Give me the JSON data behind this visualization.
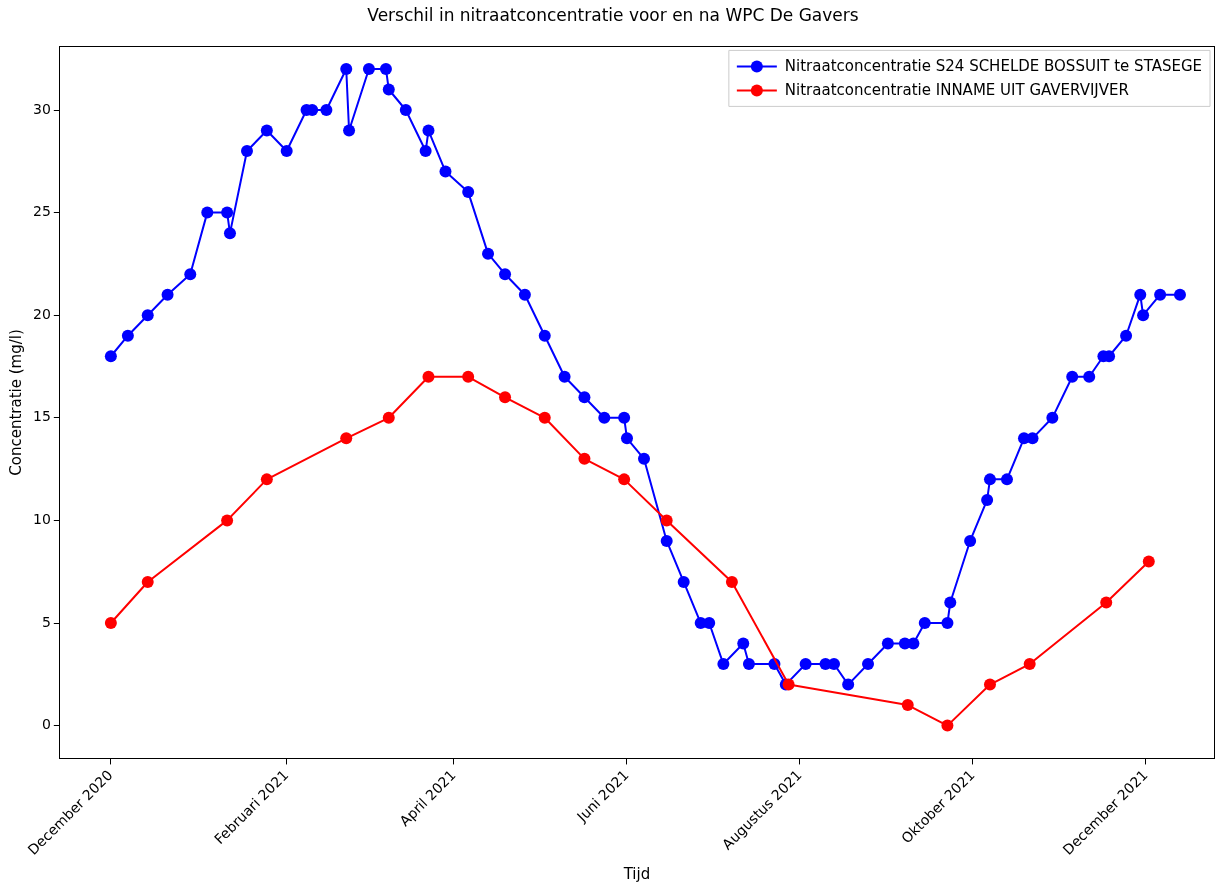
{
  "chart_data": {
    "type": "line",
    "title": "Verschil in nitraatconcentratie voor en na WPC De Gavers",
    "xlabel": "Tijd",
    "ylabel": "Concentratie (mg/l)",
    "xlim": [
      "2020-11-13",
      "2021-12-25"
    ],
    "ylim": [
      -1.6,
      33.1
    ],
    "xticks": [
      {
        "value": "2020-12-01",
        "label": "December 2020"
      },
      {
        "value": "2021-02-01",
        "label": "Februari 2021"
      },
      {
        "value": "2021-04-01",
        "label": "April 2021"
      },
      {
        "value": "2021-06-01",
        "label": "Juni 2021"
      },
      {
        "value": "2021-08-01",
        "label": "Augustus 2021"
      },
      {
        "value": "2021-10-01",
        "label": "Oktober 2021"
      },
      {
        "value": "2021-12-01",
        "label": "December 2021"
      }
    ],
    "yticks": [
      0,
      5,
      10,
      15,
      20,
      25,
      30
    ],
    "legend": "top right",
    "marker": "circle",
    "grid": false,
    "series": [
      {
        "name": "Nitraatconcentratie S24 SCHELDE BOSSUIT te STASEGE",
        "color": "#0000ff",
        "x": [
          "2020-12-01",
          "2020-12-07",
          "2020-12-14",
          "2020-12-21",
          "2020-12-29",
          "2021-01-04",
          "2021-01-11",
          "2021-01-12",
          "2021-01-18",
          "2021-01-25",
          "2021-02-01",
          "2021-02-08",
          "2021-02-10",
          "2021-02-15",
          "2021-02-22",
          "2021-02-23",
          "2021-03-02",
          "2021-03-08",
          "2021-03-09",
          "2021-03-15",
          "2021-03-22",
          "2021-03-23",
          "2021-03-29",
          "2021-04-06",
          "2021-04-13",
          "2021-04-19",
          "2021-04-26",
          "2021-05-03",
          "2021-05-10",
          "2021-05-17",
          "2021-05-24",
          "2021-05-31",
          "2021-06-01",
          "2021-06-07",
          "2021-06-15",
          "2021-06-21",
          "2021-06-27",
          "2021-06-30",
          "2021-07-05",
          "2021-07-12",
          "2021-07-14",
          "2021-07-23",
          "2021-07-27",
          "2021-08-03",
          "2021-08-10",
          "2021-08-13",
          "2021-08-18",
          "2021-08-25",
          "2021-09-01",
          "2021-09-07",
          "2021-09-10",
          "2021-09-14",
          "2021-09-22",
          "2021-09-23",
          "2021-09-30",
          "2021-10-06",
          "2021-10-07",
          "2021-10-13",
          "2021-10-19",
          "2021-10-22",
          "2021-10-29",
          "2021-11-05",
          "2021-11-11",
          "2021-11-16",
          "2021-11-18",
          "2021-11-24",
          "2021-11-29",
          "2021-11-30",
          "2021-12-06",
          "2021-12-13"
        ],
        "values": [
          18,
          19,
          20,
          21,
          22,
          25,
          25,
          24,
          28,
          29,
          28,
          30,
          30,
          30,
          32,
          29,
          32,
          32,
          31,
          30,
          28,
          29,
          27,
          26,
          23,
          22,
          21,
          19,
          17,
          16,
          15,
          15,
          14,
          13,
          9,
          7,
          5,
          5,
          3,
          4,
          3,
          3,
          2,
          3,
          3,
          3,
          2,
          3,
          4,
          4,
          4,
          5,
          5,
          6,
          9,
          11,
          12,
          12,
          14,
          14,
          15,
          17,
          17,
          18,
          18,
          19,
          21,
          20,
          21,
          21
        ]
      },
      {
        "name": "Nitraatconcentratie INNAME UIT GAVERVIJVER",
        "color": "#ff0000",
        "x": [
          "2020-12-01",
          "2020-12-14",
          "2021-01-11",
          "2021-01-25",
          "2021-02-22",
          "2021-03-09",
          "2021-03-23",
          "2021-04-06",
          "2021-04-19",
          "2021-05-03",
          "2021-05-17",
          "2021-05-31",
          "2021-06-15",
          "2021-07-08",
          "2021-07-28",
          "2021-09-08",
          "2021-09-22",
          "2021-10-07",
          "2021-10-21",
          "2021-11-17",
          "2021-12-02"
        ],
        "values": [
          5,
          7,
          10,
          12,
          14,
          15,
          17,
          17,
          16,
          15,
          13,
          12,
          10,
          7,
          2,
          1,
          0,
          2,
          3,
          6,
          8
        ]
      }
    ]
  }
}
